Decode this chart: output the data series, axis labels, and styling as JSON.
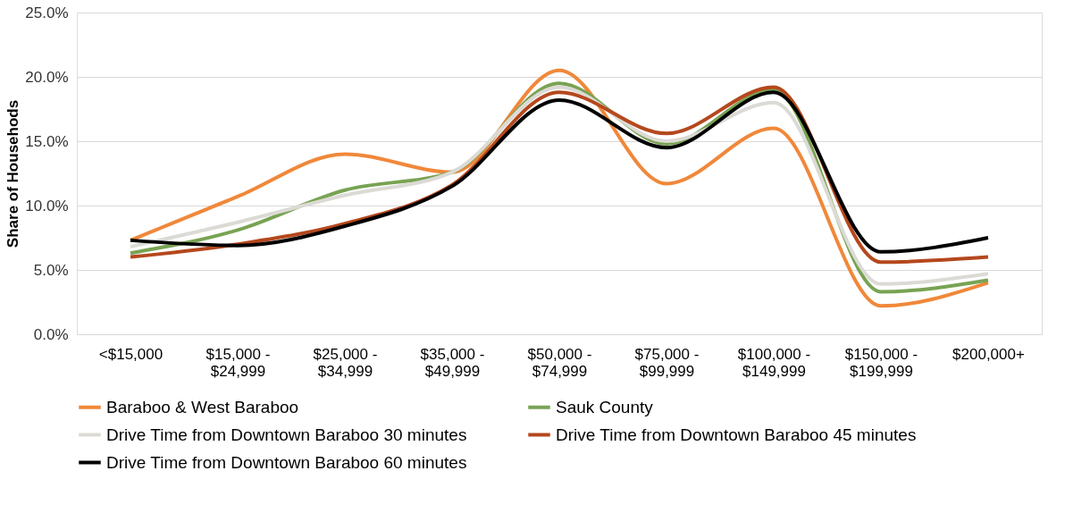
{
  "chart_data": {
    "type": "line",
    "ylabel": "Share of Househods",
    "categories": [
      "<$15,000",
      "$15,000 - $24,999",
      "$25,000 - $34,999",
      "$35,000 - $49,999",
      "$50,000 - $74,999",
      "$75,000 - $99,999",
      "$100,000 - $149,999",
      "$150,000 - $199,999",
      "$200,000+"
    ],
    "series": [
      {
        "name": "Baraboo & West Baraboo",
        "color": "#f0883a",
        "values": [
          7.3,
          10.7,
          14.0,
          12.6,
          20.5,
          11.7,
          16.0,
          2.2,
          4.0
        ]
      },
      {
        "name": "Sauk County",
        "color": "#78a353",
        "values": [
          6.3,
          8.1,
          11.2,
          12.6,
          19.5,
          14.8,
          19.0,
          3.3,
          4.2
        ]
      },
      {
        "name": "Drive Time from Downtown Baraboo 30 minutes",
        "color": "#dcdad5",
        "values": [
          6.8,
          8.7,
          10.8,
          12.6,
          19.2,
          15.0,
          18.0,
          3.9,
          4.7
        ]
      },
      {
        "name": "Drive Time from Downtown Baraboo 45 minutes",
        "color": "#b5481d",
        "values": [
          6.0,
          7.0,
          8.6,
          11.6,
          18.8,
          15.6,
          19.2,
          5.6,
          6.0
        ]
      },
      {
        "name": "Drive Time from Downtown Baraboo 60 minutes",
        "color": "#000000",
        "values": [
          7.3,
          6.9,
          8.4,
          11.5,
          18.2,
          14.5,
          18.8,
          6.4,
          7.5
        ]
      }
    ],
    "ylim": [
      0,
      25
    ],
    "yticks": [
      {
        "value": 0,
        "label": "0.0%"
      },
      {
        "value": 5,
        "label": "5.0%"
      },
      {
        "value": 10,
        "label": "10.0%"
      },
      {
        "value": 15,
        "label": "15.0%"
      },
      {
        "value": 20,
        "label": "20.0%"
      },
      {
        "value": 25,
        "label": "25.0%"
      }
    ],
    "grid": "y",
    "legend": "bottom",
    "marker": "none",
    "line_style": "solid"
  }
}
